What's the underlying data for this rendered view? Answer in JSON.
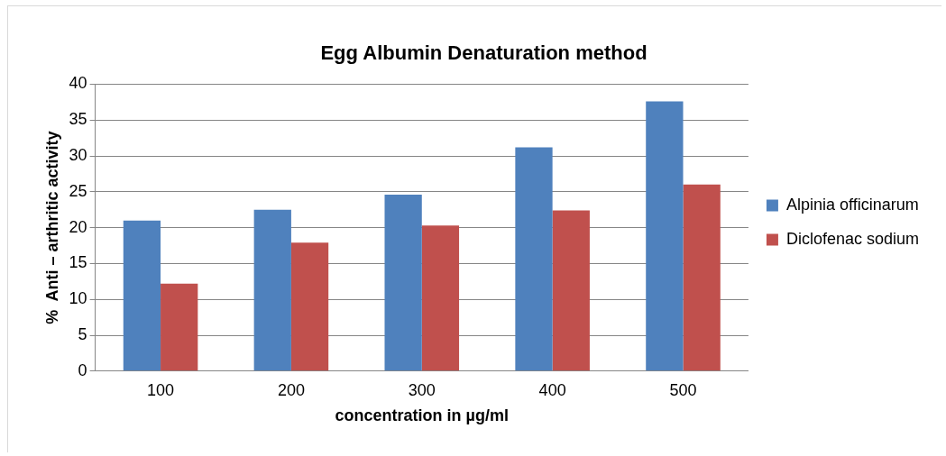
{
  "chart_data": {
    "type": "bar",
    "title": "Egg Albumin Denaturation method",
    "xlabel": "concentration in µg/ml",
    "ylabel": "%  Anti – arthritic activity",
    "categories": [
      "100",
      "200",
      "300",
      "400",
      "500"
    ],
    "series": [
      {
        "name": "Alpinia officinarum",
        "color": "#4f81bd",
        "values": [
          21.0,
          22.5,
          24.6,
          31.2,
          37.6
        ]
      },
      {
        "name": "Diclofenac sodium",
        "color": "#c0504d",
        "values": [
          12.2,
          17.9,
          20.3,
          22.4,
          26.0
        ]
      }
    ],
    "ylim": [
      0,
      40
    ],
    "yticks": [
      0,
      5,
      10,
      15,
      20,
      25,
      30,
      35,
      40
    ],
    "grid": "y",
    "legend": "right"
  }
}
